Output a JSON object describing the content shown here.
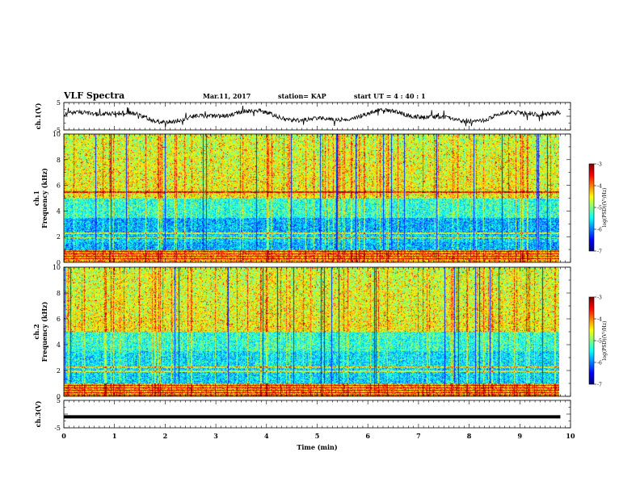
{
  "header": {
    "title": "VLF Spectra",
    "date": "Mar.11, 2017",
    "station": "station= KAP",
    "start_ut": "start  UT =   4 : 40 : 1"
  },
  "chart_data": [
    {
      "type": "line",
      "name": "waveform-ch1",
      "ylabel": "ch.1(V)",
      "ylim": [
        -5,
        5
      ],
      "yticks": [
        "5",
        "-5"
      ],
      "xlim": [
        0,
        10
      ]
    },
    {
      "type": "heatmap",
      "name": "spectrogram-ch1",
      "ylabel": "Frequency  (kHz)",
      "channel_label": "ch.1",
      "ylim": [
        0,
        10
      ],
      "yticks": [
        "0",
        "2",
        "4",
        "6",
        "8",
        "10"
      ],
      "xlim": [
        0,
        10
      ],
      "colorbar": {
        "label": "log(PSD)(V²/Hz)",
        "ticks": [
          "-3",
          "-4",
          "-5",
          "-6",
          "-7"
        ],
        "range": [
          -7,
          -3
        ]
      }
    },
    {
      "type": "heatmap",
      "name": "spectrogram-ch2",
      "ylabel": "Frequency  (kHz)",
      "channel_label": "ch.2",
      "ylim": [
        0,
        10
      ],
      "yticks": [
        "0",
        "2",
        "4",
        "6",
        "8",
        "10"
      ],
      "xlim": [
        0,
        10
      ],
      "colorbar": {
        "label": "log(PSD)(V²/Hz)",
        "ticks": [
          "-3",
          "-4",
          "-5",
          "-6",
          "-7"
        ],
        "range": [
          -7,
          -3
        ]
      }
    },
    {
      "type": "line",
      "name": "waveform-ch3",
      "ylabel": "ch.3(V)",
      "ylim": [
        -5,
        5
      ],
      "yticks": [
        "5",
        "-5"
      ],
      "xlim": [
        0,
        10
      ],
      "constant_value": -1
    }
  ],
  "xaxis": {
    "label": "Time  (min)",
    "ticks": [
      "0",
      "1",
      "2",
      "3",
      "4",
      "5",
      "6",
      "7",
      "8",
      "9",
      "10"
    ]
  }
}
